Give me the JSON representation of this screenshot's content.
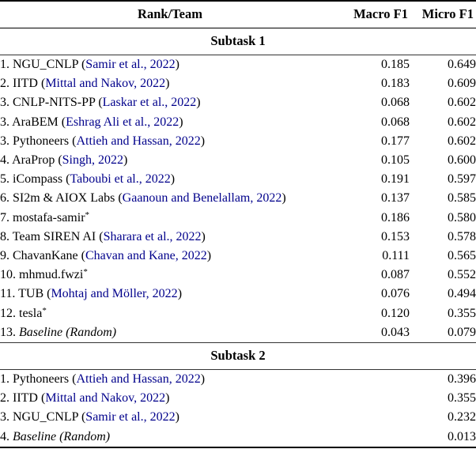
{
  "link_color": "#00008B",
  "table": {
    "headers": {
      "team": "Rank/Team",
      "macro": "Macro F1",
      "micro": "Micro F1"
    },
    "sections": [
      {
        "title": "Subtask 1",
        "rows": [
          {
            "pre": "1. NGU_CNLP (",
            "cite": "Samir et al., 2022",
            "post": ")",
            "macro": "0.185",
            "micro": "0.649"
          },
          {
            "pre": "2. IITD (",
            "cite": "Mittal and Nakov, 2022",
            "post": ")",
            "macro": "0.183",
            "micro": "0.609"
          },
          {
            "pre": "3. CNLP-NITS-PP (",
            "cite": "Laskar et al., 2022",
            "post": ")",
            "macro": "0.068",
            "micro": "0.602"
          },
          {
            "pre": "3. AraBEM (",
            "cite": "Eshrag Ali et al., 2022",
            "post": ")",
            "macro": "0.068",
            "micro": "0.602"
          },
          {
            "pre": "3. Pythoneers (",
            "cite": "Attieh and Hassan, 2022",
            "post": ")",
            "macro": "0.177",
            "micro": "0.602"
          },
          {
            "pre": "4. AraProp (",
            "cite": "Singh, 2022",
            "post": ")",
            "macro": "0.105",
            "micro": "0.600"
          },
          {
            "pre": "5. iCompass (",
            "cite": "Taboubi et al., 2022",
            "post": ")",
            "macro": "0.191",
            "micro": "0.597"
          },
          {
            "pre": "6. SI2m & AIOX Labs (",
            "cite": "Gaanoun and Benelallam, 2022",
            "post": ")",
            "macro": "0.137",
            "micro": "0.585"
          },
          {
            "pre": "7. mostafa-samir",
            "star": "*",
            "macro": "0.186",
            "micro": "0.580"
          },
          {
            "pre": "8. Team SIREN AI (",
            "cite": "Sharara et al., 2022",
            "post": ")",
            "macro": "0.153",
            "micro": "0.578"
          },
          {
            "pre": "9. ChavanKane (",
            "cite": "Chavan and Kane, 2022",
            "post": ")",
            "macro": "0.111",
            "micro": "0.565"
          },
          {
            "pre": "10. mhmud.fwzi",
            "star": "*",
            "macro": "0.087",
            "micro": "0.552"
          },
          {
            "pre": "11. TUB (",
            "cite": "Mohtaj and Möller, 2022",
            "post": ")",
            "macro": "0.076",
            "micro": "0.494"
          },
          {
            "pre": "12. tesla",
            "star": "*",
            "macro": "0.120",
            "micro": "0.355"
          },
          {
            "pre": "13. ",
            "italic": "Baseline (Random)",
            "macro": "0.043",
            "micro": "0.079"
          }
        ]
      },
      {
        "title": "Subtask 2",
        "rows": [
          {
            "pre": "1. Pythoneers (",
            "cite": "Attieh and Hassan, 2022",
            "post": ")",
            "macro": "",
            "micro": "0.396"
          },
          {
            "pre": "2. IITD (",
            "cite": "Mittal and Nakov, 2022",
            "post": ")",
            "macro": "",
            "micro": "0.355"
          },
          {
            "pre": "3. NGU_CNLP (",
            "cite": "Samir et al., 2022",
            "post": ")",
            "macro": "",
            "micro": "0.232"
          },
          {
            "pre": "4. ",
            "italic": "Baseline (Random)",
            "macro": "",
            "micro": "0.013"
          }
        ]
      }
    ]
  }
}
